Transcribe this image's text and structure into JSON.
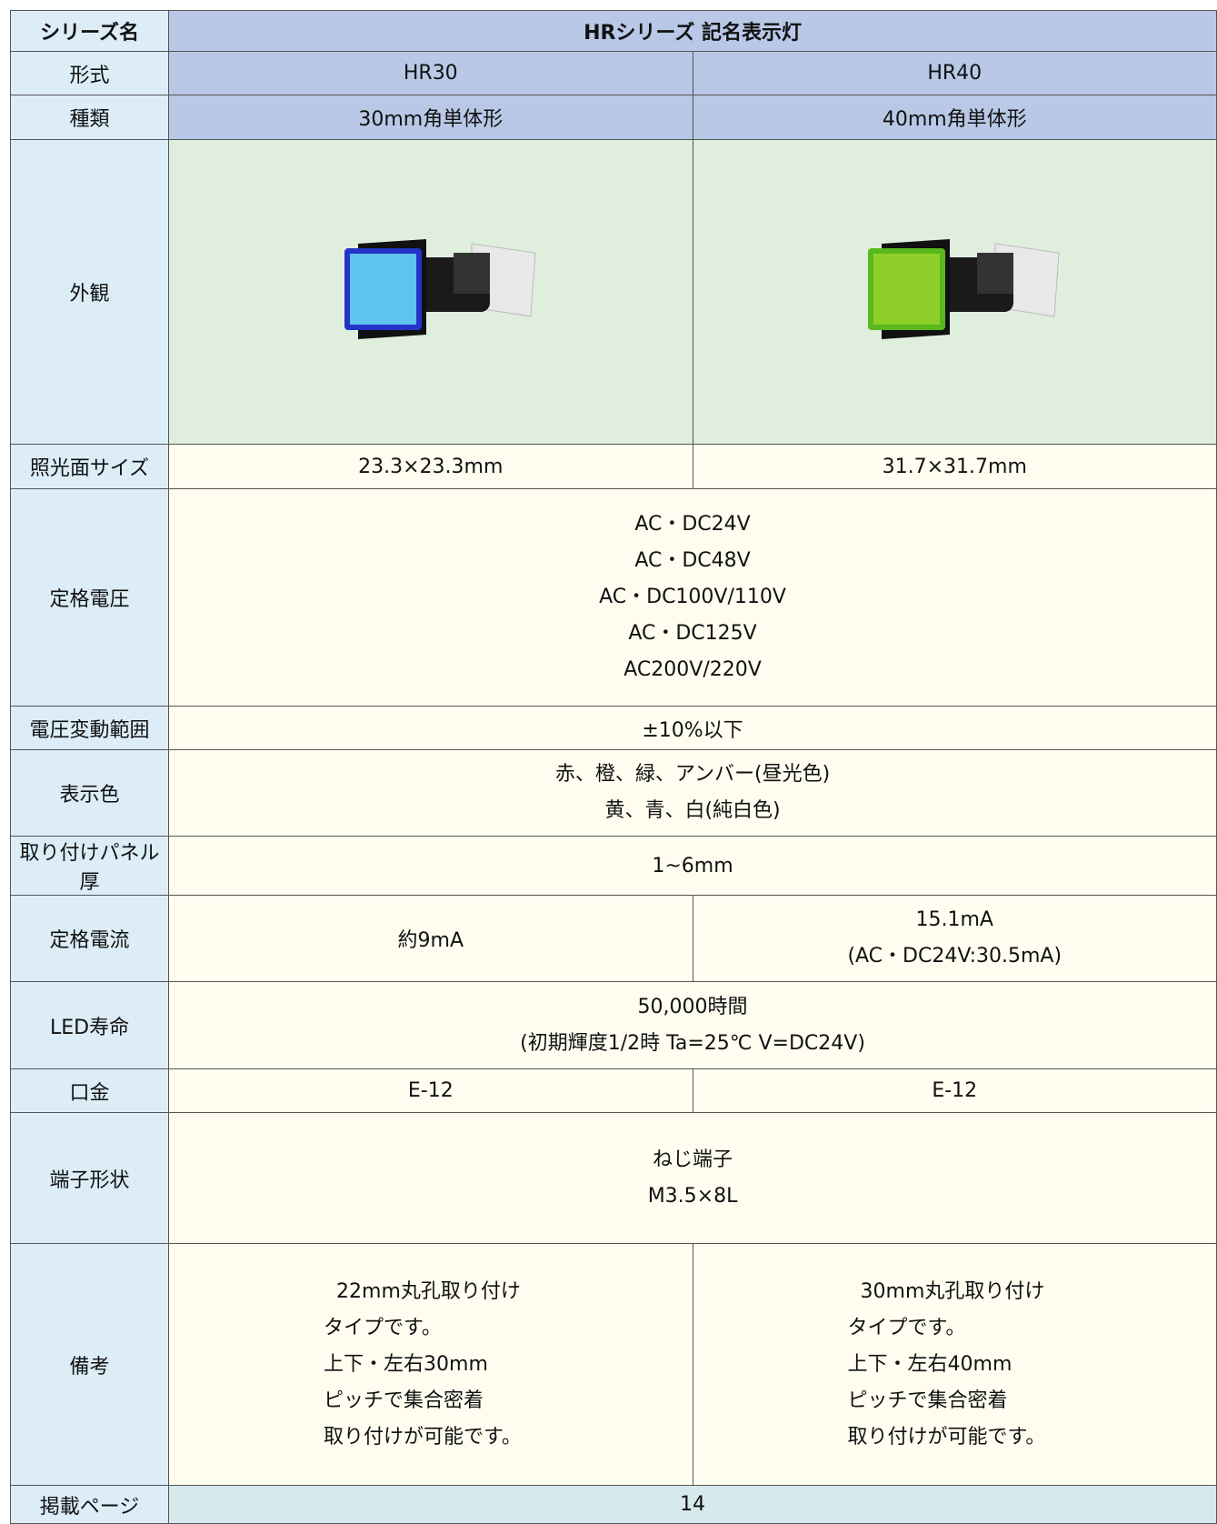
{
  "table": {
    "rows": [
      {
        "label": "シリーズ名",
        "cells": [
          [
            "HRシリーズ 記名表示灯"
          ]
        ]
      },
      {
        "label": "形式",
        "cells": [
          [
            "HR30"
          ],
          [
            "HR40"
          ]
        ]
      },
      {
        "label": "種類",
        "cells": [
          [
            "30mm角単体形"
          ],
          [
            "40mm角単体形"
          ]
        ]
      },
      {
        "label": "外観"
      },
      {
        "label": "照光面サイズ",
        "cells": [
          [
            "23.3×23.3mm"
          ],
          [
            "31.7×31.7mm"
          ]
        ]
      },
      {
        "label": "定格電圧",
        "cells": [
          [
            "AC・DC24V",
            "AC・DC48V",
            "AC・DC100V/110V",
            "AC・DC125V",
            "AC200V/220V"
          ]
        ]
      },
      {
        "label": "電圧変動範囲",
        "cells": [
          [
            "±10%以下"
          ]
        ]
      },
      {
        "label": "表示色",
        "cells": [
          [
            "赤、橙、緑、アンバー(昼光色)",
            "黄、青、白(純白色)"
          ]
        ]
      },
      {
        "label": "取り付けパネル厚",
        "cells": [
          [
            "1~6mm"
          ]
        ]
      },
      {
        "label": "定格電流",
        "cells": [
          [
            "約9mA"
          ],
          [
            "15.1mA",
            "(AC・DC24V:30.5mA)"
          ]
        ]
      },
      {
        "label": "LED寿命",
        "cells": [
          [
            "50,000時間",
            "(初期輝度1/2時 Ta=25℃ V=DC24V)"
          ]
        ]
      },
      {
        "label": "口金",
        "cells": [
          [
            "E-12"
          ],
          [
            "E-12"
          ]
        ]
      },
      {
        "label": "端子形状",
        "cells": [
          [
            "ねじ端子",
            "M3.5×8L"
          ]
        ]
      },
      {
        "label": "備考",
        "cells": [
          [
            "22mm丸孔取り付け",
            "タイプです。",
            "上下・左右30mm",
            "ピッチで集合密着",
            "取り付けが可能です。"
          ],
          [
            "30mm丸孔取り付け",
            "タイプです。",
            "上下・左右40mm",
            "ピッチで集合密着",
            "取り付けが可能です。"
          ]
        ]
      },
      {
        "label": "掲載ページ",
        "cells": [
          [
            "14"
          ]
        ]
      }
    ]
  }
}
